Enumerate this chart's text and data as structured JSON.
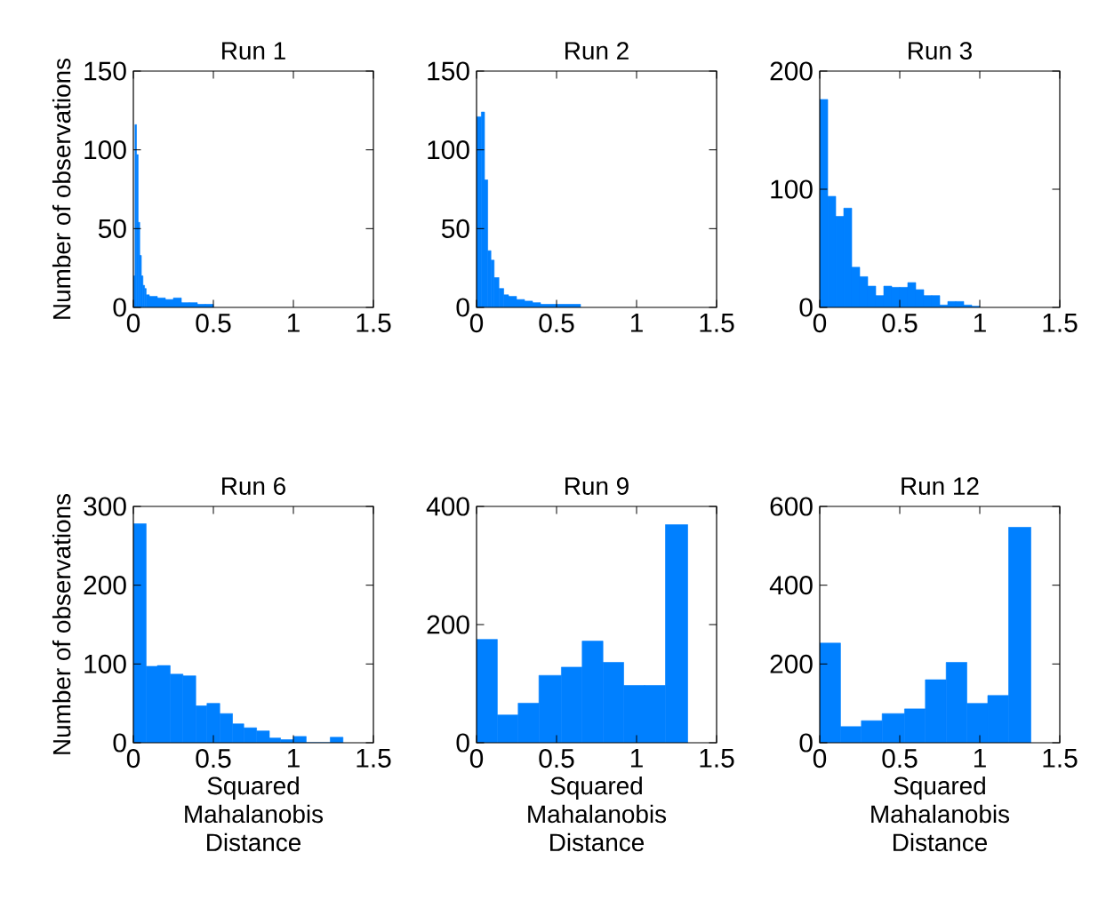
{
  "chart_data": [
    {
      "type": "histogram",
      "title": "Run 1",
      "ylabel": "Number of observations",
      "color": "#0080ff",
      "bins": [
        0,
        0.01,
        0.02,
        0.03,
        0.04,
        0.05,
        0.06,
        0.07,
        0.08,
        0.1,
        0.15,
        0.2,
        0.25,
        0.3,
        0.35,
        0.4,
        0.45,
        0.5
      ],
      "values": [
        20,
        116,
        97,
        54,
        33,
        20,
        14,
        12,
        8,
        7,
        6,
        5,
        6,
        3,
        3,
        2,
        2
      ],
      "xlim": [
        0,
        1.5
      ],
      "xticks": [
        0,
        0.5,
        1,
        1.5
      ],
      "ylim": [
        0,
        150
      ],
      "yticks": [
        0,
        50,
        100,
        150
      ]
    },
    {
      "type": "histogram",
      "title": "Run 2",
      "color": "#0080ff",
      "bins": [
        0,
        0.03,
        0.05,
        0.07,
        0.09,
        0.11,
        0.14,
        0.17,
        0.2,
        0.25,
        0.3,
        0.35,
        0.4,
        0.5,
        0.65
      ],
      "values": [
        121,
        124,
        81,
        36,
        30,
        19,
        12,
        8,
        7,
        5,
        4,
        3,
        2,
        2
      ],
      "xlim": [
        0,
        1.5
      ],
      "xticks": [
        0,
        0.5,
        1,
        1.5
      ],
      "ylim": [
        0,
        150
      ],
      "yticks": [
        0,
        50,
        100,
        150
      ]
    },
    {
      "type": "histogram",
      "title": "Run 3",
      "color": "#0080ff",
      "bins": [
        0,
        0.05,
        0.1,
        0.15,
        0.2,
        0.25,
        0.3,
        0.35,
        0.4,
        0.45,
        0.5,
        0.55,
        0.6,
        0.65,
        0.7,
        0.75,
        0.8,
        0.85,
        0.9,
        0.95,
        1.0
      ],
      "values": [
        176,
        94,
        77,
        84,
        34,
        26,
        18,
        10,
        18,
        17,
        17,
        21,
        15,
        10,
        10,
        2,
        5,
        5,
        2,
        1
      ],
      "xlim": [
        0,
        1.5
      ],
      "xticks": [
        0,
        0.5,
        1,
        1.5
      ],
      "ylim": [
        0,
        200
      ],
      "yticks": [
        0,
        100,
        200
      ]
    },
    {
      "type": "histogram",
      "title": "Run 6",
      "ylabel": "Number of observations",
      "xlabel": "Squared Mahalanobis Distance",
      "color": "#0080ff",
      "bins": [
        0,
        0.08,
        0.15,
        0.23,
        0.31,
        0.39,
        0.46,
        0.54,
        0.62,
        0.69,
        0.77,
        0.85,
        0.92,
        1.0,
        1.08,
        1.23,
        1.31
      ],
      "values": [
        278,
        97,
        98,
        87,
        85,
        47,
        50,
        37,
        24,
        19,
        15,
        6,
        4,
        8,
        0,
        7
      ],
      "xlim": [
        0,
        1.5
      ],
      "xticks": [
        0,
        0.5,
        1,
        1.5
      ],
      "ylim": [
        0,
        300
      ],
      "yticks": [
        0,
        100,
        200,
        300
      ]
    },
    {
      "type": "histogram",
      "title": "Run 9",
      "xlabel": "Squared Mahalanobis Distance",
      "color": "#0080ff",
      "bins": [
        0,
        0.13,
        0.26,
        0.39,
        0.53,
        0.66,
        0.79,
        0.92,
        1.05,
        1.18,
        1.32
      ],
      "values": [
        175,
        47,
        67,
        114,
        128,
        172,
        136,
        97,
        97,
        369
      ],
      "xlim": [
        0,
        1.5
      ],
      "xticks": [
        0,
        0.5,
        1,
        1.5
      ],
      "ylim": [
        0,
        400
      ],
      "yticks": [
        0,
        200,
        400
      ]
    },
    {
      "type": "histogram",
      "title": "Run 12",
      "xlabel": "Squared Mahalanobis Distance",
      "color": "#0080ff",
      "bins": [
        0,
        0.13,
        0.26,
        0.39,
        0.53,
        0.66,
        0.79,
        0.92,
        1.05,
        1.18,
        1.32
      ],
      "values": [
        253,
        41,
        56,
        74,
        86,
        160,
        204,
        100,
        120,
        547
      ],
      "xlim": [
        0,
        1.5
      ],
      "xticks": [
        0,
        0.5,
        1,
        1.5
      ],
      "ylim": [
        0,
        600
      ],
      "yticks": [
        0,
        200,
        400,
        600
      ]
    }
  ]
}
